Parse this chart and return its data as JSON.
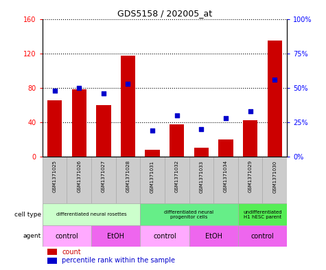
{
  "title": "GDS5158 / 202005_at",
  "samples": [
    "GSM1371025",
    "GSM1371026",
    "GSM1371027",
    "GSM1371028",
    "GSM1371031",
    "GSM1371032",
    "GSM1371033",
    "GSM1371034",
    "GSM1371029",
    "GSM1371030"
  ],
  "counts": [
    65,
    78,
    60,
    117,
    8,
    37,
    10,
    20,
    42,
    135
  ],
  "percentiles": [
    48,
    50,
    46,
    53,
    19,
    30,
    20,
    28,
    33,
    56
  ],
  "ylim_left": [
    0,
    160
  ],
  "ylim_right": [
    0,
    100
  ],
  "yticks_left": [
    0,
    40,
    80,
    120,
    160
  ],
  "yticks_right": [
    0,
    25,
    50,
    75,
    100
  ],
  "yticklabels_right": [
    "0%",
    "25%",
    "50%",
    "75%",
    "100%"
  ],
  "cell_type_groups": [
    {
      "label": "differentiated neural rosettes",
      "start": 0,
      "end": 3,
      "color": "#ccffcc"
    },
    {
      "label": "differentiated neural\nprogenitor cells",
      "start": 4,
      "end": 7,
      "color": "#66ee88"
    },
    {
      "label": "undifferentiated\nH1 hESC parent",
      "start": 8,
      "end": 9,
      "color": "#55ee55"
    }
  ],
  "agent_groups": [
    {
      "label": "control",
      "start": 0,
      "end": 1,
      "color": "#ffaaff"
    },
    {
      "label": "EtOH",
      "start": 2,
      "end": 3,
      "color": "#ee66ee"
    },
    {
      "label": "control",
      "start": 4,
      "end": 5,
      "color": "#ffaaff"
    },
    {
      "label": "EtOH",
      "start": 6,
      "end": 7,
      "color": "#ee66ee"
    },
    {
      "label": "control",
      "start": 8,
      "end": 9,
      "color": "#ee66ee"
    }
  ],
  "bar_color": "#cc0000",
  "dot_color": "#0000cc",
  "sample_bg_color": "#cccccc",
  "table_border_color": "#aaaaaa"
}
